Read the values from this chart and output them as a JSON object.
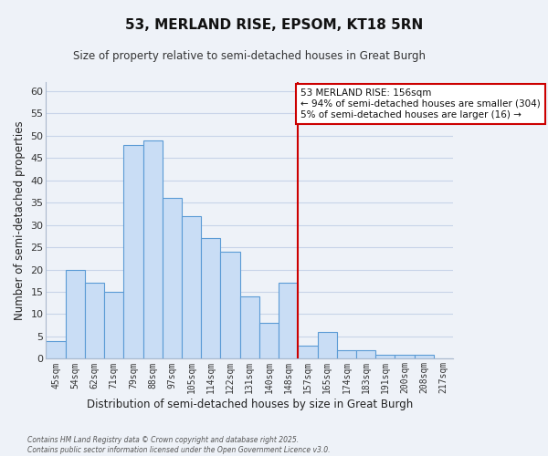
{
  "title": "53, MERLAND RISE, EPSOM, KT18 5RN",
  "subtitle": "Size of property relative to semi-detached houses in Great Burgh",
  "xlabel": "Distribution of semi-detached houses by size in Great Burgh",
  "ylabel": "Number of semi-detached properties",
  "bar_labels": [
    "45sqm",
    "54sqm",
    "62sqm",
    "71sqm",
    "79sqm",
    "88sqm",
    "97sqm",
    "105sqm",
    "114sqm",
    "122sqm",
    "131sqm",
    "140sqm",
    "148sqm",
    "157sqm",
    "165sqm",
    "174sqm",
    "183sqm",
    "191sqm",
    "200sqm",
    "208sqm",
    "217sqm"
  ],
  "bar_values": [
    4,
    20,
    17,
    15,
    48,
    49,
    36,
    32,
    27,
    24,
    14,
    8,
    17,
    3,
    6,
    2,
    2,
    1,
    1,
    1,
    0
  ],
  "bar_color": "#c9ddf5",
  "bar_edge_color": "#5b9bd5",
  "annotation_text_line1": "53 MERLAND RISE: 156sqm",
  "annotation_text_line2": "← 94% of semi-detached houses are smaller (304)",
  "annotation_text_line3": "5% of semi-detached houses are larger (16) →",
  "annotation_box_color": "#ffffff",
  "annotation_box_edge_color": "#cc0000",
  "vline_color": "#cc0000",
  "grid_color": "#c8d4e8",
  "background_color": "#eef2f8",
  "ylim": [
    0,
    62
  ],
  "yticks": [
    0,
    5,
    10,
    15,
    20,
    25,
    30,
    35,
    40,
    45,
    50,
    55,
    60
  ],
  "footer_line1": "Contains HM Land Registry data © Crown copyright and database right 2025.",
  "footer_line2": "Contains public sector information licensed under the Open Government Licence v3.0."
}
